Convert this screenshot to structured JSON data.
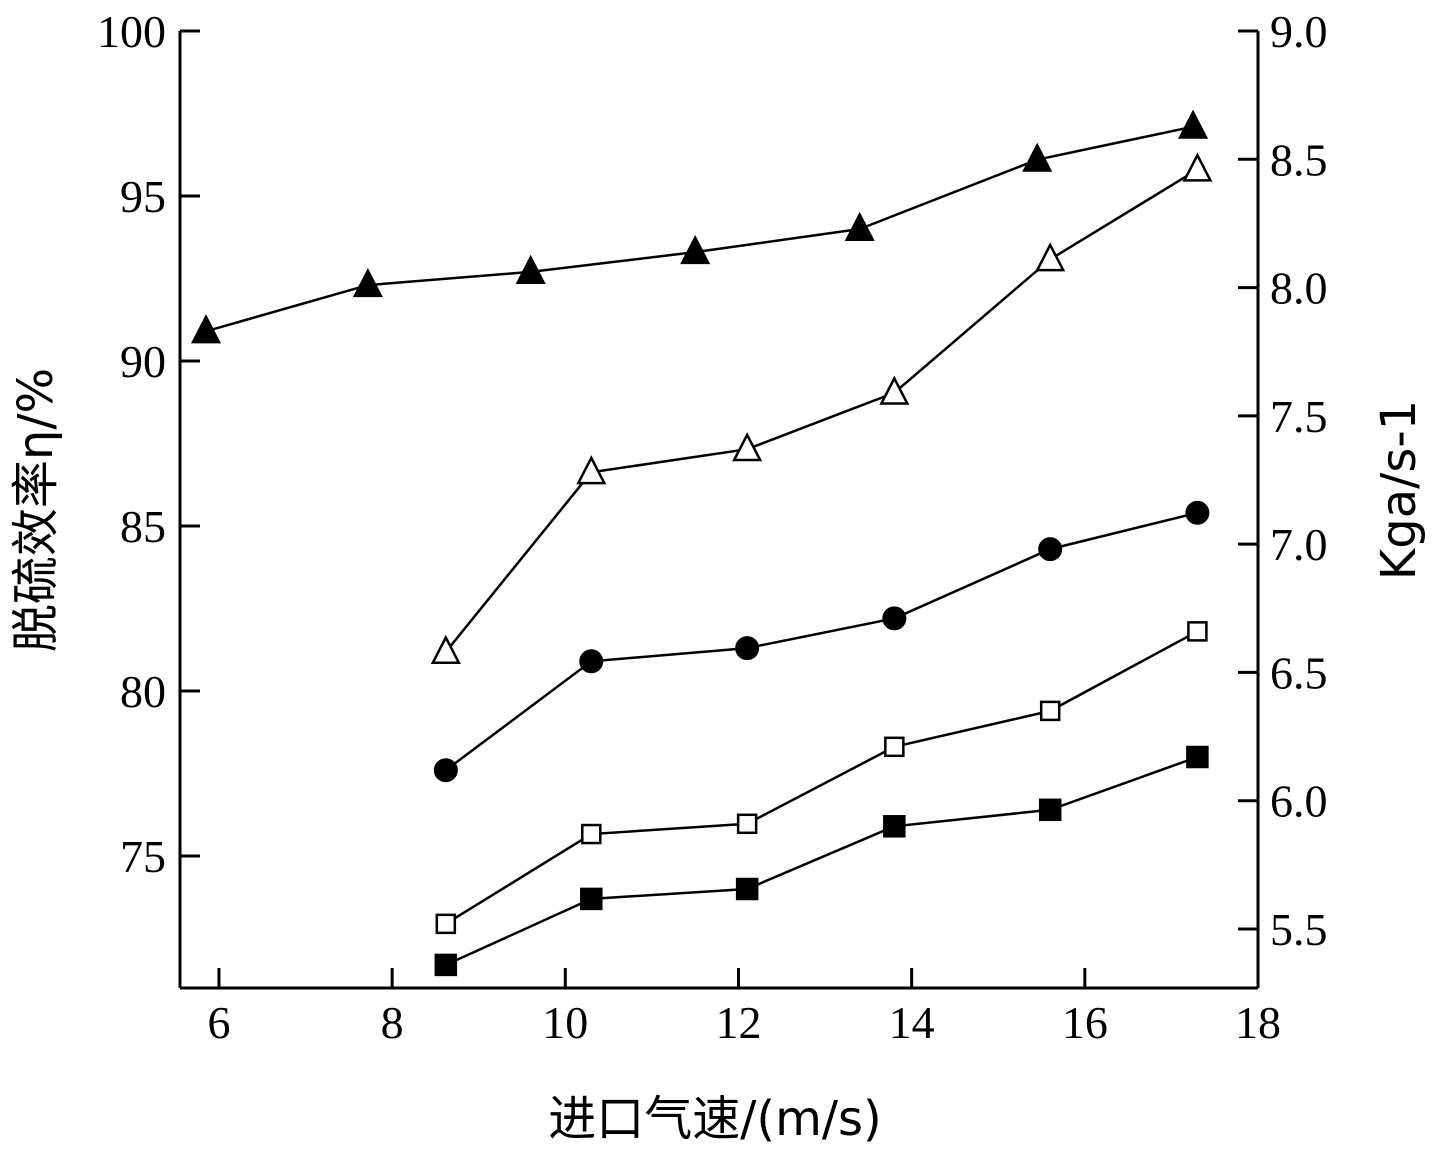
{
  "chart_data": {
    "type": "line",
    "xlabel": "进口气速/(m/s)",
    "ylabel_left": "脱硫效率η/%",
    "ylabel_right": "Kga/s-1",
    "xlim": [
      5.55,
      18
    ],
    "ylim_left": [
      71,
      100
    ],
    "ylim_right": [
      5.27,
      9.0
    ],
    "xticks": [
      6,
      8,
      10,
      12,
      14,
      16,
      18
    ],
    "yticks_left": [
      75,
      80,
      85,
      90,
      95,
      100
    ],
    "yticks_right": [
      "5.5",
      "6.0",
      "6.5",
      "7.0",
      "7.5",
      "8.0",
      "8.5",
      "9.0"
    ],
    "grid": false,
    "series": [
      {
        "marker": "filled-triangle",
        "axis": "left",
        "x": [
          5.85,
          7.72,
          9.6,
          11.5,
          13.4,
          15.45,
          17.25
        ],
        "y": [
          90.9,
          92.3,
          92.7,
          93.3,
          94.0,
          96.1,
          97.1
        ]
      },
      {
        "marker": "open-triangle",
        "axis": "right",
        "x": [
          8.62,
          10.3,
          12.1,
          13.8,
          15.6,
          17.3
        ],
        "y": [
          6.58,
          7.28,
          7.37,
          7.59,
          8.11,
          8.46
        ]
      },
      {
        "marker": "filled-circle",
        "axis": "left",
        "x": [
          8.62,
          10.3,
          12.1,
          13.8,
          15.6,
          17.3
        ],
        "y": [
          77.6,
          80.9,
          81.3,
          82.2,
          84.3,
          85.4
        ]
      },
      {
        "marker": "open-square",
        "axis": "right",
        "x": [
          8.62,
          10.3,
          12.1,
          13.8,
          15.6,
          17.3
        ],
        "y": [
          5.52,
          5.87,
          5.91,
          6.21,
          6.35,
          6.66
        ]
      },
      {
        "marker": "filled-square",
        "axis": "left",
        "x": [
          8.62,
          10.3,
          12.1,
          13.8,
          15.6,
          17.3
        ],
        "y": [
          71.7,
          73.7,
          74.0,
          75.9,
          76.4,
          78.0
        ]
      }
    ]
  }
}
